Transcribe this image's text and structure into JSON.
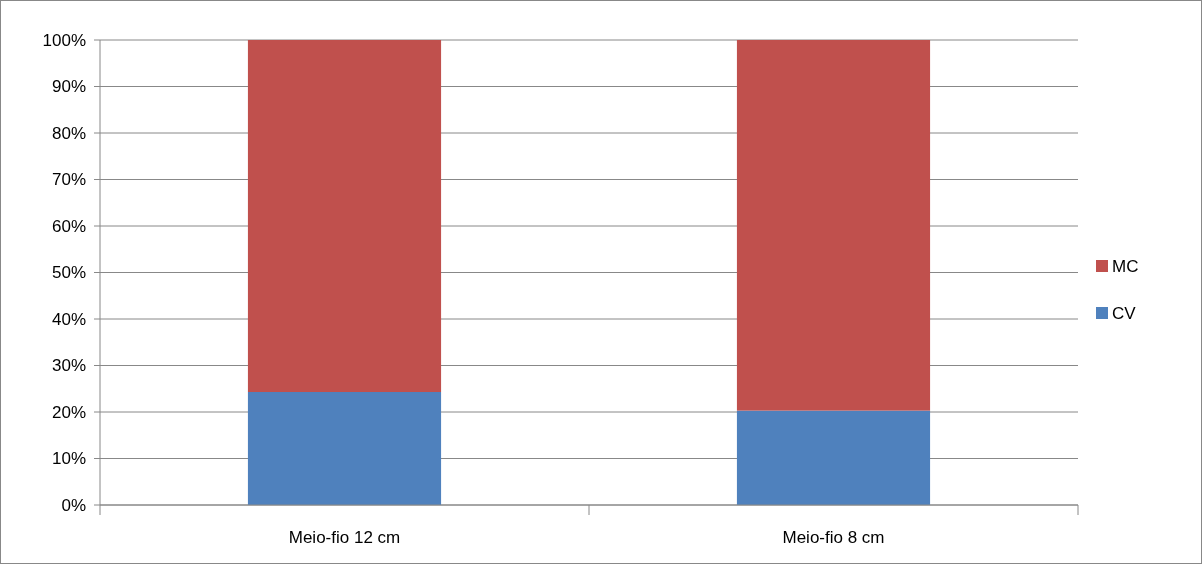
{
  "chart_data": {
    "type": "bar",
    "stacked": true,
    "categories": [
      "Meio-fio 12 cm",
      "Meio-fio 8 cm"
    ],
    "series": [
      {
        "name": "CV",
        "color": "#4f81bd",
        "values": [
          24.3,
          20.3
        ]
      },
      {
        "name": "MC",
        "color": "#c0504d",
        "values": [
          75.7,
          79.7
        ]
      }
    ],
    "ylim": [
      0,
      100
    ],
    "yticks": [
      {
        "value": 0,
        "label": "0%"
      },
      {
        "value": 10,
        "label": "10%"
      },
      {
        "value": 20,
        "label": "20%"
      },
      {
        "value": 30,
        "label": "30%"
      },
      {
        "value": 40,
        "label": "40%"
      },
      {
        "value": 50,
        "label": "50%"
      },
      {
        "value": 60,
        "label": "60%"
      },
      {
        "value": 70,
        "label": "70%"
      },
      {
        "value": 80,
        "label": "80%"
      },
      {
        "value": 90,
        "label": "90%"
      },
      {
        "value": 100,
        "label": "100%"
      }
    ],
    "grid": "y",
    "legend": "right"
  }
}
